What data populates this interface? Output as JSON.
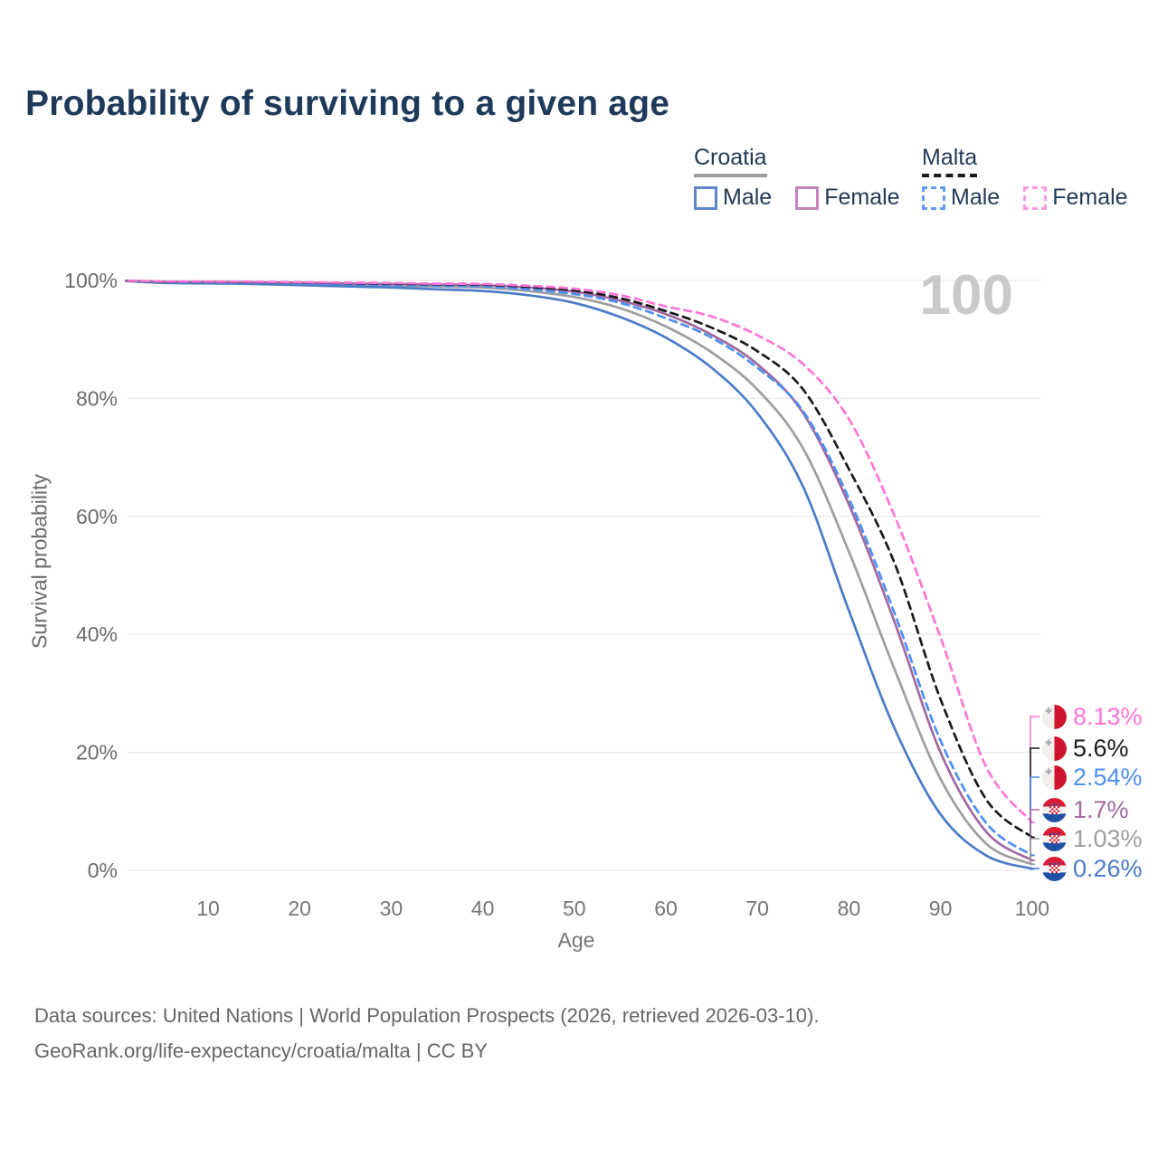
{
  "header": {
    "title": "Probability of surviving to a given age"
  },
  "legend": {
    "groups": [
      {
        "label": "Croatia",
        "line_style": "solid",
        "underline_color": "#9e9e9e",
        "items": [
          {
            "label": "Male",
            "color": "#5b87c9",
            "dashed": false
          },
          {
            "label": "Female",
            "color": "#c583bb",
            "dashed": false
          }
        ]
      },
      {
        "label": "Malta",
        "line_style": "dashed",
        "underline_color": "#1a1a1a",
        "items": [
          {
            "label": "Male",
            "color": "#5f9bf5",
            "dashed": true
          },
          {
            "label": "Female",
            "color": "#ff9ae1",
            "dashed": true
          }
        ]
      }
    ]
  },
  "chart_data": {
    "type": "line",
    "title": "Probability of surviving to a given age",
    "xlabel": "Age",
    "ylabel": "Survival probability",
    "watermark": "100",
    "xlim": [
      0,
      100
    ],
    "ylim": [
      0,
      100
    ],
    "grid": "horizontal",
    "legend_position": "top-right",
    "x_ticks": [
      10,
      20,
      30,
      40,
      50,
      60,
      70,
      80,
      90,
      100
    ],
    "y_ticks": [
      "0%",
      "20%",
      "40%",
      "60%",
      "80%",
      "100%"
    ],
    "x": [
      0,
      5,
      10,
      15,
      20,
      25,
      30,
      35,
      40,
      45,
      50,
      55,
      60,
      65,
      70,
      75,
      80,
      85,
      90,
      95,
      100
    ],
    "series": [
      {
        "name": "Croatia Male",
        "country": "croatia",
        "sex": "male",
        "color": "#4a7cc7",
        "dashed": false,
        "end_label": "0.26%",
        "values": [
          100,
          99.6,
          99.5,
          99.4,
          99.2,
          99.0,
          98.8,
          98.5,
          98.2,
          97.5,
          96.2,
          93.8,
          90.3,
          85.2,
          77.5,
          65,
          44,
          24,
          9.5,
          2.5,
          0.26
        ]
      },
      {
        "name": "Croatia Both sexes",
        "country": "croatia",
        "sex": "both",
        "color": "#9e9e9e",
        "dashed": false,
        "end_label": "1.03%",
        "values": [
          100,
          99.7,
          99.65,
          99.55,
          99.45,
          99.3,
          99.15,
          99.0,
          98.8,
          98.2,
          97.2,
          95.3,
          92.2,
          87.8,
          81.5,
          71.5,
          54,
          34,
          15.5,
          4.5,
          1.03
        ]
      },
      {
        "name": "Croatia Female",
        "country": "croatia",
        "sex": "female",
        "color": "#a2689f",
        "dashed": false,
        "end_label": "1.7%",
        "values": [
          100,
          99.8,
          99.75,
          99.7,
          99.6,
          99.5,
          99.4,
          99.3,
          99.2,
          98.8,
          98.1,
          96.6,
          94.3,
          90.8,
          85.8,
          77.5,
          62,
          42,
          20,
          6.5,
          1.7
        ]
      },
      {
        "name": "Malta Male",
        "country": "malta",
        "sex": "male",
        "color": "#4d8ff2",
        "dashed": true,
        "end_label": "2.54%",
        "values": [
          100,
          99.75,
          99.7,
          99.6,
          99.5,
          99.4,
          99.25,
          99.1,
          99.0,
          98.5,
          97.7,
          96.2,
          93.6,
          90.3,
          85.2,
          77.8,
          63,
          43.5,
          22,
          8,
          2.54
        ]
      },
      {
        "name": "Malta Both sexes",
        "country": "malta",
        "sex": "both",
        "color": "#1a1a1a",
        "dashed": true,
        "end_label": "5.6%",
        "values": [
          100,
          99.8,
          99.78,
          99.72,
          99.65,
          99.55,
          99.45,
          99.35,
          99.3,
          98.9,
          98.3,
          97.0,
          94.8,
          92.0,
          88.0,
          81.5,
          68,
          52,
          29,
          12,
          5.6
        ]
      },
      {
        "name": "Malta Female",
        "country": "malta",
        "sex": "female",
        "color": "#ff74d8",
        "dashed": true,
        "end_label": "8.13%",
        "values": [
          100,
          99.85,
          99.82,
          99.78,
          99.7,
          99.62,
          99.55,
          99.45,
          99.4,
          99.1,
          98.6,
          97.5,
          95.6,
          93.9,
          90.7,
          85.8,
          76.5,
          60,
          39.5,
          17.5,
          8.13
        ]
      }
    ]
  },
  "footer": {
    "line1": "Data sources: United Nations | World Population Prospects (2026, retrieved 2026-03-10).",
    "line2": "GeoRank.org/life-expectancy/croatia/malta | CC BY"
  }
}
